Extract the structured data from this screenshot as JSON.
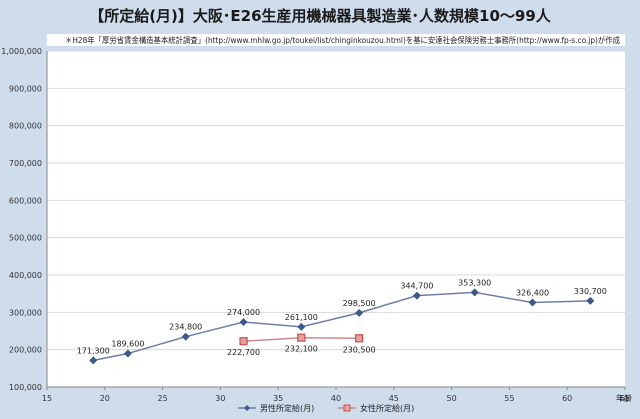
{
  "chart_data": {
    "type": "line",
    "title": "【所定給(月)】大阪･E26生産用機械器具製造業･人数規模10～99人",
    "source_note": "＊H28年「厚労省賃金構造基本統計調査」(http://www.mhlw.go.jp/toukei/list/chinginkouzou.html)を基に安達社会保険労務士事務所(http://www.fp-s.co.jp)が作成",
    "xlabel": "年齢",
    "ylabel": "",
    "xlim": [
      15,
      65
    ],
    "ylim": [
      100000,
      1000000
    ],
    "x_ticks": [
      "15",
      "20",
      "25",
      "30",
      "35",
      "40",
      "45",
      "50",
      "55",
      "60",
      "65"
    ],
    "y_ticks": [
      "100,000",
      "200,000",
      "300,000",
      "400,000",
      "500,000",
      "600,000",
      "700,000",
      "800,000",
      "900,000",
      "1,000,000"
    ],
    "grid": "horizontal",
    "legend_position": "bottom",
    "series": [
      {
        "name": "男性所定給(月)",
        "color": "#6d7fa8",
        "marker_color": "#3c5a8c",
        "marker": "diamond",
        "x": [
          19,
          22,
          27,
          32,
          37,
          42,
          47,
          52,
          57,
          62
        ],
        "values": [
          171300,
          189600,
          234800,
          274000,
          261100,
          298500,
          344700,
          353300,
          326400,
          330700
        ],
        "labels": [
          "171,300",
          "189,600",
          "234,800",
          "274,000",
          "261,100",
          "298,500",
          "344,700",
          "353,300",
          "326,400",
          "330,700"
        ]
      },
      {
        "name": "女性所定給(月)",
        "color": "#c88a8a",
        "marker_color": "#c0504d",
        "marker": "square",
        "x": [
          32,
          37,
          42
        ],
        "values": [
          222700,
          232100,
          230500
        ],
        "labels": [
          "222,700",
          "232,100",
          "230,500"
        ]
      }
    ]
  }
}
